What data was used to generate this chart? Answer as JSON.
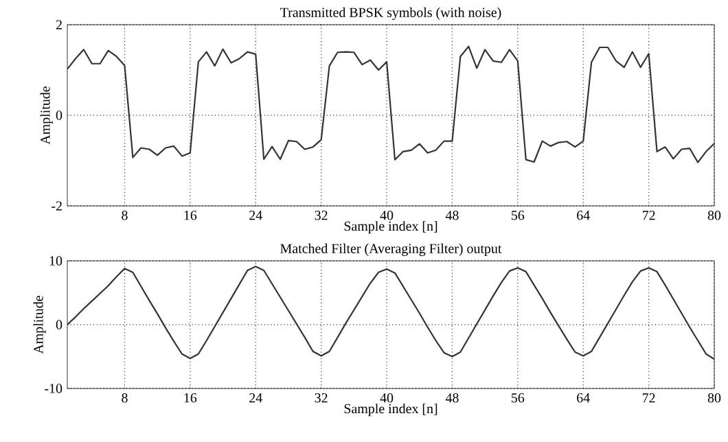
{
  "chart_data": [
    {
      "type": "line",
      "title": "Transmitted BPSK symbols (with noise)",
      "xlabel": "Sample index [n]",
      "ylabel": "Amplitude",
      "x": [
        1,
        2,
        3,
        4,
        5,
        6,
        7,
        8,
        9,
        10,
        11,
        12,
        13,
        14,
        15,
        16,
        17,
        18,
        19,
        20,
        21,
        22,
        23,
        24,
        25,
        26,
        27,
        28,
        29,
        30,
        31,
        32,
        33,
        34,
        35,
        36,
        37,
        38,
        39,
        40,
        41,
        42,
        43,
        44,
        45,
        46,
        47,
        48,
        49,
        50,
        51,
        52,
        53,
        54,
        55,
        56,
        57,
        58,
        59,
        60,
        61,
        62,
        63,
        64,
        65,
        66,
        67,
        68,
        69,
        70,
        71,
        72,
        73,
        74,
        75,
        76,
        77,
        78,
        79,
        80
      ],
      "series": [
        {
          "color": "#333333",
          "values": [
            1.02,
            1.25,
            1.45,
            1.14,
            1.14,
            1.43,
            1.3,
            1.1,
            -0.93,
            -0.72,
            -0.75,
            -0.88,
            -0.72,
            -0.68,
            -0.9,
            -0.83,
            1.18,
            1.4,
            1.09,
            1.46,
            1.16,
            1.25,
            1.4,
            1.35,
            -0.97,
            -0.69,
            -0.97,
            -0.56,
            -0.58,
            -0.75,
            -0.7,
            -0.54,
            1.09,
            1.39,
            1.4,
            1.39,
            1.12,
            1.22,
            1.0,
            1.18,
            -0.98,
            -0.8,
            -0.77,
            -0.63,
            -0.83,
            -0.77,
            -0.57,
            -0.57,
            1.3,
            1.52,
            1.04,
            1.45,
            1.2,
            1.17,
            1.45,
            1.2,
            -0.98,
            -1.03,
            -0.57,
            -0.68,
            -0.6,
            -0.58,
            -0.7,
            -0.57,
            1.17,
            1.5,
            1.5,
            1.2,
            1.06,
            1.4,
            1.06,
            1.36,
            -0.8,
            -0.7,
            -0.96,
            -0.75,
            -0.73,
            -1.04,
            -0.8,
            -0.62
          ]
        }
      ],
      "xlim": [
        1,
        80
      ],
      "xticks": [
        8,
        16,
        24,
        32,
        40,
        48,
        56,
        64,
        72,
        80
      ],
      "ylim": [
        -2,
        2
      ],
      "yticks": [
        -2,
        0,
        2
      ],
      "grid": true,
      "line_style": "solid"
    },
    {
      "type": "line",
      "title": "Matched Filter (Averaging Filter) output",
      "xlabel": "Sample index [n]",
      "ylabel": "Amplitude",
      "x": [
        1,
        2,
        3,
        4,
        5,
        6,
        7,
        8,
        9,
        10,
        11,
        12,
        13,
        14,
        15,
        16,
        17,
        18,
        19,
        20,
        21,
        22,
        23,
        24,
        25,
        26,
        27,
        28,
        29,
        30,
        31,
        32,
        33,
        34,
        35,
        36,
        37,
        38,
        39,
        40,
        41,
        42,
        43,
        44,
        45,
        46,
        47,
        48,
        49,
        50,
        51,
        52,
        53,
        54,
        55,
        56,
        57,
        58,
        59,
        60,
        61,
        62,
        63,
        64,
        65,
        66,
        67,
        68,
        69,
        70,
        71,
        72,
        73,
        74,
        75,
        76,
        77,
        78,
        79,
        80
      ],
      "series": [
        {
          "color": "#333333",
          "values": [
            0,
            1.2,
            2.5,
            3.7,
            4.9,
            6.1,
            7.5,
            8.8,
            8.2,
            6.0,
            3.8,
            1.7,
            -0.5,
            -2.6,
            -4.6,
            -5.3,
            -4.6,
            -2.5,
            -0.3,
            1.9,
            4.1,
            6.3,
            8.5,
            9.1,
            8.5,
            6.4,
            4.3,
            2.2,
            0.1,
            -2.0,
            -4.2,
            -4.9,
            -4.2,
            -2.0,
            0.2,
            2.3,
            4.4,
            6.5,
            8.2,
            8.7,
            8.1,
            6.0,
            3.9,
            1.8,
            -0.4,
            -2.5,
            -4.4,
            -5.0,
            -4.3,
            -2.1,
            0.1,
            2.3,
            4.5,
            6.6,
            8.4,
            8.9,
            8.3,
            6.2,
            4.1,
            1.9,
            -0.2,
            -2.3,
            -4.3,
            -4.9,
            -4.2,
            -2.0,
            0.2,
            2.4,
            4.6,
            6.7,
            8.4,
            8.9,
            8.3,
            6.2,
            4.0,
            1.8,
            -0.4,
            -2.5,
            -4.6,
            -5.4
          ]
        }
      ],
      "xlim": [
        1,
        80
      ],
      "xticks": [
        8,
        16,
        24,
        32,
        40,
        48,
        56,
        64,
        72,
        80
      ],
      "ylim": [
        -10,
        10
      ],
      "yticks": [
        -10,
        0,
        10
      ],
      "grid": true,
      "line_style": "solid"
    }
  ]
}
